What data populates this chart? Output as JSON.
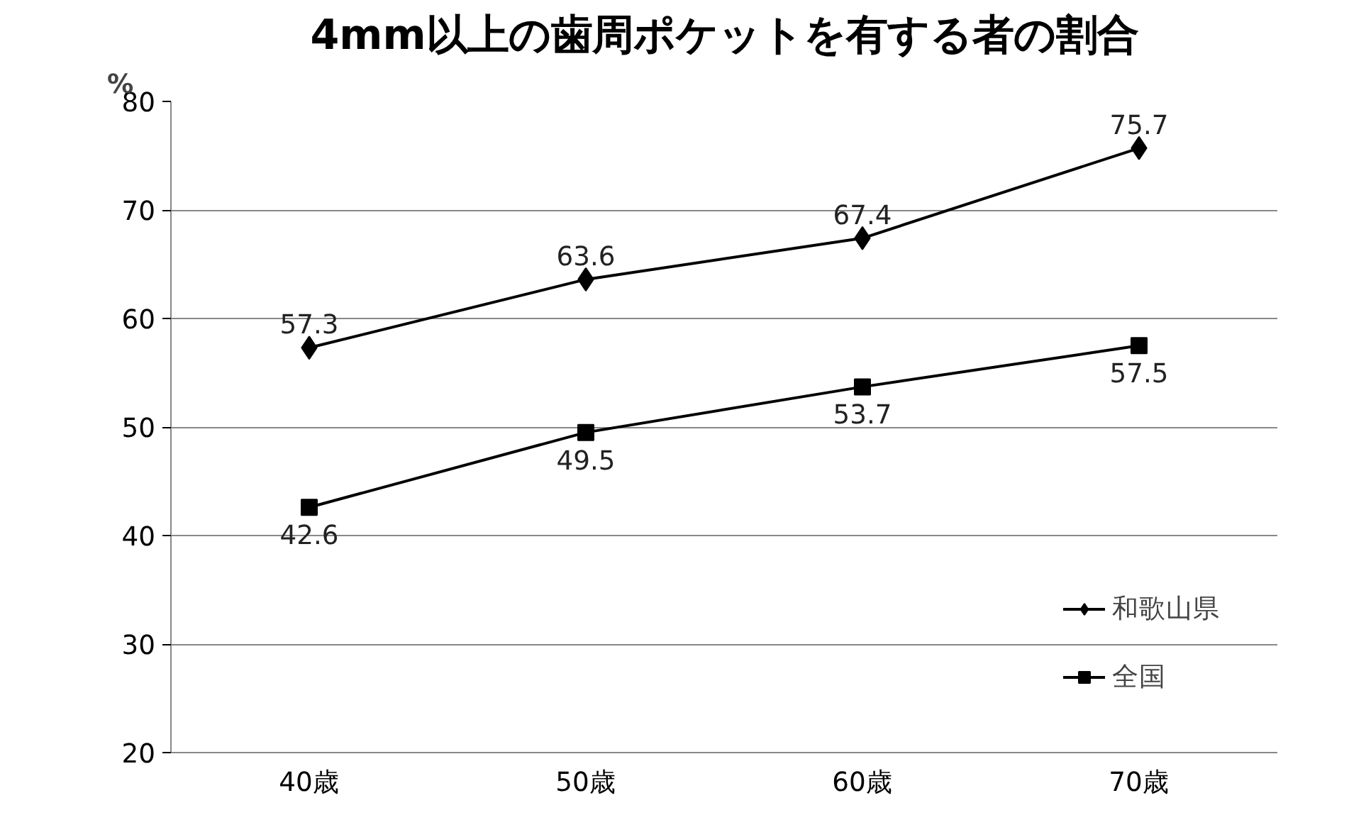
{
  "chart_data": {
    "type": "line",
    "title": "4mm以上の歯周ポケットを有する者の割合",
    "ylabel": "%",
    "categories": [
      "40歳",
      "50歳",
      "60歳",
      "70歳"
    ],
    "series": [
      {
        "name": "和歌山県",
        "color": "#000000",
        "marker": "diamond",
        "values": [
          57.3,
          63.6,
          67.4,
          75.7
        ]
      },
      {
        "name": "全国",
        "color": "#000000",
        "marker": "square",
        "values": [
          42.6,
          49.5,
          53.7,
          57.5
        ]
      }
    ],
    "ylim": [
      20,
      80
    ],
    "yticks": [
      20,
      30,
      40,
      50,
      60,
      70,
      80
    ],
    "grid": "y",
    "legend": "bottom right",
    "data_labels": true,
    "line_style": "solid"
  }
}
